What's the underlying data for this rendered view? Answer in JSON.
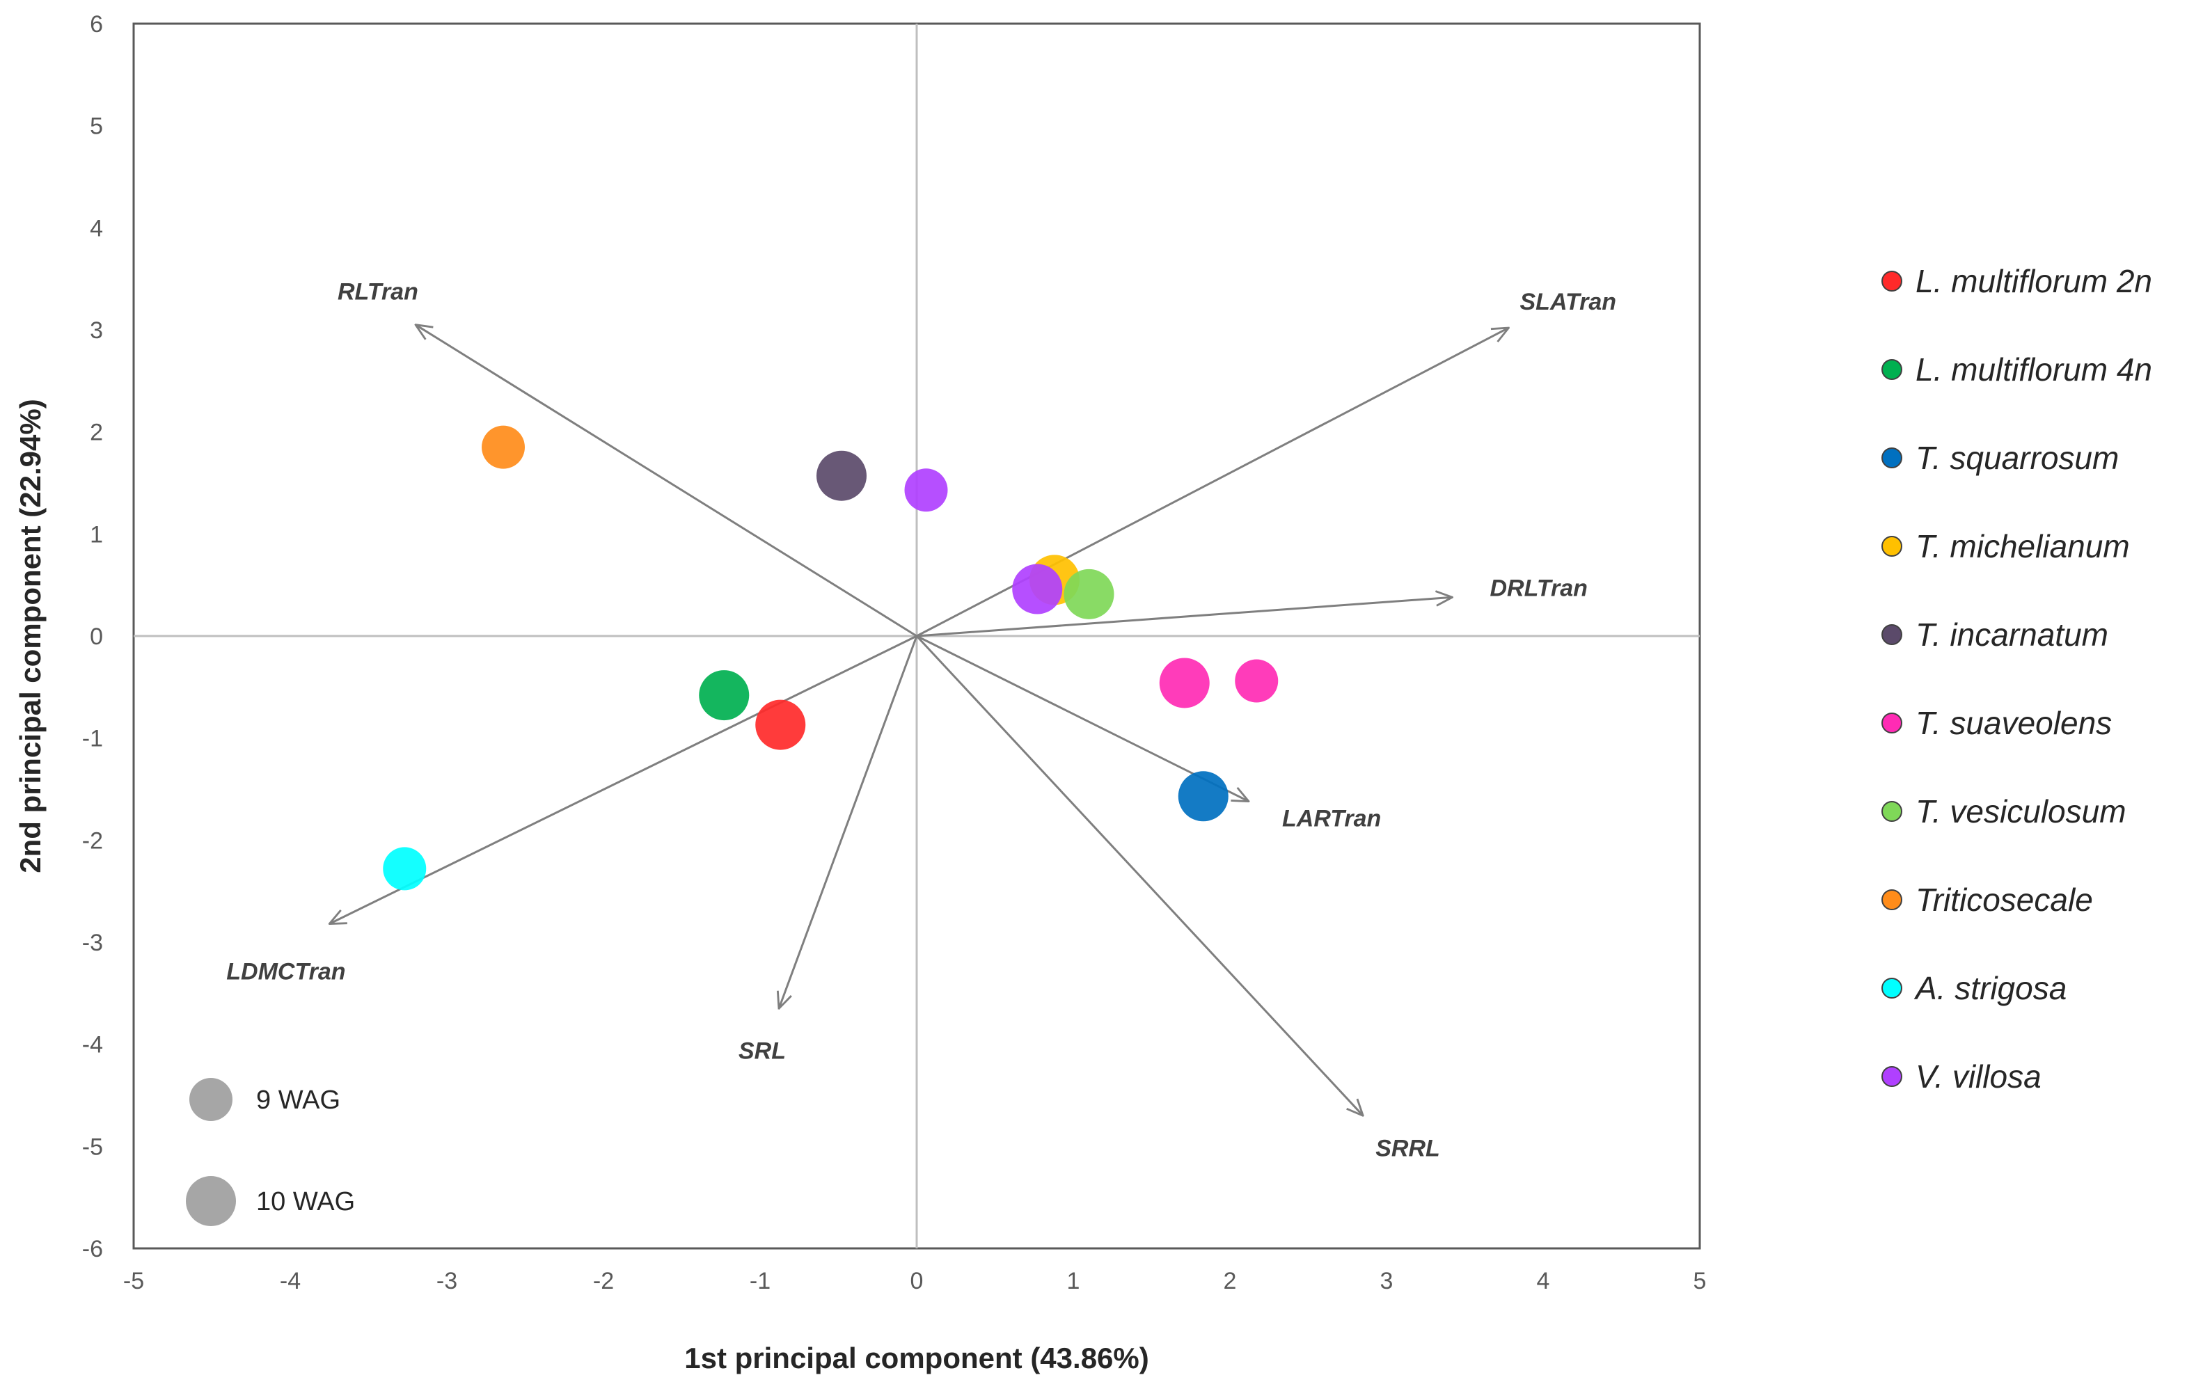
{
  "chart_data": {
    "type": "scatter",
    "subtype": "pca-biplot",
    "xlabel": "1st principal component (43.86%)",
    "ylabel": "2nd principal component (22.94%)",
    "xlim": [
      -5,
      5
    ],
    "ylim": [
      -6,
      6
    ],
    "xticks": [
      -5,
      -4,
      -3,
      -2,
      -1,
      0,
      1,
      2,
      3,
      4,
      5
    ],
    "yticks": [
      -6,
      -5,
      -4,
      -3,
      -2,
      -1,
      0,
      1,
      2,
      3,
      4,
      5,
      6
    ],
    "vectors": [
      {
        "name": "RLTran",
        "x": -3.2,
        "y": 3.05
      },
      {
        "name": "SLATran",
        "x": 3.78,
        "y": 3.02
      },
      {
        "name": "DRLTran",
        "x": 3.42,
        "y": 0.38
      },
      {
        "name": "LARTran",
        "x": 2.12,
        "y": -1.62
      },
      {
        "name": "SRRL",
        "x": 2.85,
        "y": -4.7
      },
      {
        "name": "SRL",
        "x": -0.88,
        "y": -3.65
      },
      {
        "name": "LDMCTran",
        "x": -3.75,
        "y": -2.82
      }
    ],
    "series": [
      {
        "name": "L. multiflorum 2n",
        "color": "#ff2a2a",
        "points": [
          {
            "x": -0.87,
            "y": -0.87,
            "wag": "10 WAG"
          }
        ]
      },
      {
        "name": "L. multiflorum 4n",
        "color": "#00b050",
        "points": [
          {
            "x": -1.23,
            "y": -0.58,
            "wag": "10 WAG"
          }
        ]
      },
      {
        "name": "T. squarrosum",
        "color": "#0070c0",
        "points": [
          {
            "x": 1.83,
            "y": -1.57,
            "wag": "10 WAG"
          }
        ]
      },
      {
        "name": "T. michelianum",
        "color": "#ffc000",
        "points": [
          {
            "x": 0.88,
            "y": 0.55,
            "wag": "10 WAG"
          }
        ]
      },
      {
        "name": "T. incarnatum",
        "color": "#5b4a6a",
        "points": [
          {
            "x": -0.48,
            "y": 1.57,
            "wag": "10 WAG"
          }
        ]
      },
      {
        "name": "T. suaveolens",
        "color": "#ff2bb4",
        "points": [
          {
            "x": 1.71,
            "y": -0.46,
            "wag": "10 WAG"
          },
          {
            "x": 2.17,
            "y": -0.44,
            "wag": "9 WAG"
          }
        ]
      },
      {
        "name": "T. vesiculosum",
        "color": "#7fd858",
        "points": [
          {
            "x": 1.1,
            "y": 0.41,
            "wag": "10 WAG"
          }
        ]
      },
      {
        "name": "Triticosecale",
        "color": "#ff8c1a",
        "points": [
          {
            "x": -2.64,
            "y": 1.85,
            "wag": "9 WAG"
          }
        ]
      },
      {
        "name": "A. strigosa",
        "color": "#00ffff",
        "points": [
          {
            "x": -3.27,
            "y": -2.28,
            "wag": "9 WAG"
          }
        ]
      },
      {
        "name": "V. villosa",
        "color": "#b040ff",
        "points": [
          {
            "x": 0.77,
            "y": 0.46,
            "wag": "10 WAG"
          },
          {
            "x": 0.06,
            "y": 1.43,
            "wag": "9 WAG"
          }
        ]
      }
    ],
    "size_legend": [
      {
        "label": "9 WAG"
      },
      {
        "label": "10 WAG"
      }
    ],
    "legend_position": "right"
  }
}
